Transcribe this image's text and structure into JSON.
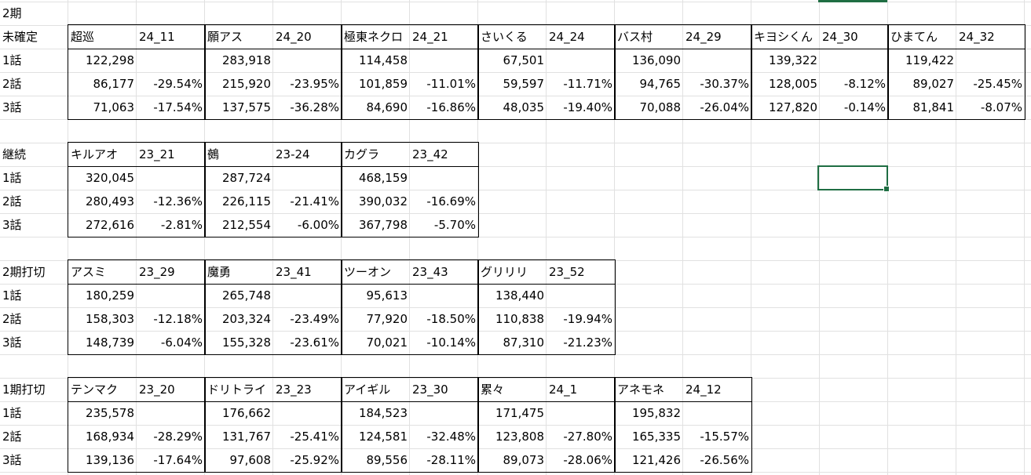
{
  "header_label": "2期",
  "sections": [
    {
      "label": "未確定",
      "shows": [
        {
          "name": "超巡",
          "code": "24_11",
          "ep": [
            "122,298",
            "86,177",
            "71,063"
          ],
          "chg": [
            "",
            "-29.54%",
            "-17.54%"
          ]
        },
        {
          "name": "願アス",
          "code": "24_20",
          "ep": [
            "283,918",
            "215,920",
            "137,575"
          ],
          "chg": [
            "",
            "-23.95%",
            "-36.28%"
          ]
        },
        {
          "name": "極東ネクロ",
          "code": "24_21",
          "ep": [
            "114,458",
            "101,859",
            "84,690"
          ],
          "chg": [
            "",
            "-11.01%",
            "-16.86%"
          ]
        },
        {
          "name": "さいくる",
          "code": "24_24",
          "ep": [
            "67,501",
            "59,597",
            "48,035"
          ],
          "chg": [
            "",
            "-11.71%",
            "-19.40%"
          ]
        },
        {
          "name": "バス村",
          "code": "24_29",
          "ep": [
            "136,090",
            "94,765",
            "70,088"
          ],
          "chg": [
            "",
            "-30.37%",
            "-26.04%"
          ]
        },
        {
          "name": "キヨシくん",
          "code": "24_30",
          "ep": [
            "139,322",
            "128,005",
            "127,820"
          ],
          "chg": [
            "",
            "-8.12%",
            "-0.14%"
          ]
        },
        {
          "name": "ひまてん",
          "code": "24_32",
          "ep": [
            "119,422",
            "89,027",
            "81,841"
          ],
          "chg": [
            "",
            "-25.45%",
            "-8.07%"
          ]
        }
      ]
    },
    {
      "label": "継続",
      "shows": [
        {
          "name": "キルアオ",
          "code": "23_21",
          "ep": [
            "320,045",
            "280,493",
            "272,616"
          ],
          "chg": [
            "",
            "-12.36%",
            "-2.81%"
          ]
        },
        {
          "name": "鵺",
          "code": "23-24",
          "ep": [
            "287,724",
            "226,115",
            "212,554"
          ],
          "chg": [
            "",
            "-21.41%",
            "-6.00%"
          ]
        },
        {
          "name": "カグラ",
          "code": "23_42",
          "ep": [
            "468,159",
            "390,032",
            "367,798"
          ],
          "chg": [
            "",
            "-16.69%",
            "-5.70%"
          ]
        }
      ]
    },
    {
      "label": "2期打切",
      "shows": [
        {
          "name": "アスミ",
          "code": "23_29",
          "ep": [
            "180,259",
            "158,303",
            "148,739"
          ],
          "chg": [
            "",
            "-12.18%",
            "-6.04%"
          ]
        },
        {
          "name": "魔勇",
          "code": "23_41",
          "ep": [
            "265,748",
            "203,324",
            "155,328"
          ],
          "chg": [
            "",
            "-23.49%",
            "-23.61%"
          ]
        },
        {
          "name": "ツーオン",
          "code": "23_43",
          "ep": [
            "95,613",
            "77,920",
            "70,021"
          ],
          "chg": [
            "",
            "-18.50%",
            "-10.14%"
          ]
        },
        {
          "name": "グリリリ",
          "code": "23_52",
          "ep": [
            "138,440",
            "110,838",
            "87,310"
          ],
          "chg": [
            "",
            "-19.94%",
            "-21.23%"
          ]
        }
      ]
    },
    {
      "label": "1期打切",
      "shows": [
        {
          "name": "テンマク",
          "code": "23_20",
          "ep": [
            "235,578",
            "168,934",
            "139,136"
          ],
          "chg": [
            "",
            "-28.29%",
            "-17.64%"
          ]
        },
        {
          "name": "ドリトライ",
          "code": "23_23",
          "ep": [
            "176,662",
            "131,767",
            "97,608"
          ],
          "chg": [
            "",
            "-25.41%",
            "-25.92%"
          ]
        },
        {
          "name": "アイギル",
          "code": "23_30",
          "ep": [
            "184,523",
            "124,581",
            "89,556"
          ],
          "chg": [
            "",
            "-32.48%",
            "-28.11%"
          ]
        },
        {
          "name": "累々",
          "code": "24_1",
          "ep": [
            "171,475",
            "123,808",
            "89,073"
          ],
          "chg": [
            "",
            "-27.80%",
            "-28.06%"
          ]
        },
        {
          "name": "アネモネ",
          "code": "24_12",
          "ep": [
            "195,832",
            "165,335",
            "121,426"
          ],
          "chg": [
            "",
            "-15.57%",
            "-26.56%"
          ]
        }
      ]
    }
  ],
  "episode_labels": [
    "1話",
    "2話",
    "3話"
  ]
}
